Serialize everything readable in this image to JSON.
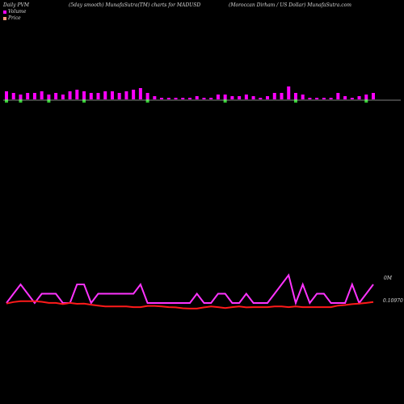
{
  "header": {
    "left": "Daily PVM",
    "middle": "(5day smooth) MunafaSutra(TM) charts for MADUSD",
    "right": "(Moroccan  Dirham  /  US Dollar) MunafaSutra.com"
  },
  "legend": {
    "volume_label": "Volume",
    "price_label": "Price",
    "volume_color": "#ff00ff",
    "price_color": "#ff9a7a"
  },
  "colors": {
    "volume_up": "#ff00ff",
    "volume_down": "#33cc33",
    "price_line": "#ff1a1a",
    "volume_line": "#ff33ff",
    "baseline": "#ffffff"
  },
  "chart_data": {
    "type": "bar",
    "title": "(5day smooth) MunafaSutra(TM) charts for MADUSD",
    "series": [
      {
        "name": "Volume",
        "values": [
          5,
          4,
          3,
          4,
          4,
          5,
          3,
          4,
          3,
          5,
          6,
          5,
          4,
          4,
          5,
          5,
          4,
          5,
          6,
          7,
          4,
          2,
          1,
          1,
          1,
          1,
          1,
          2,
          1,
          1,
          3,
          3,
          2,
          2,
          3,
          2,
          1,
          2,
          4,
          4,
          8,
          4,
          3,
          1,
          1,
          1,
          1,
          4,
          2,
          1,
          2,
          3,
          4
        ],
        "direction": [
          "down",
          "up",
          "down",
          "up",
          "up",
          "up",
          "down",
          "up",
          "up",
          "up",
          "up",
          "down",
          "up",
          "up",
          "up",
          "up",
          "up",
          "up",
          "up",
          "up",
          "down",
          "up",
          "up",
          "up",
          "up",
          "up",
          "up",
          "up",
          "up",
          "up",
          "up",
          "down",
          "up",
          "up",
          "up",
          "up",
          "up",
          "up",
          "up",
          "up",
          "up",
          "down",
          "up",
          "up",
          "up",
          "up",
          "up",
          "up",
          "up",
          "up",
          "up",
          "down",
          "up"
        ]
      },
      {
        "name": "Price",
        "values": [
          0.1097,
          0.10975,
          0.10978,
          0.10978,
          0.10978,
          0.10976,
          0.10972,
          0.10972,
          0.10968,
          0.10972,
          0.10969,
          0.1097,
          0.10966,
          0.10963,
          0.1096,
          0.1096,
          0.1096,
          0.1096,
          0.10958,
          0.10958,
          0.10962,
          0.10962,
          0.1096,
          0.10958,
          0.10957,
          0.10954,
          0.10953,
          0.10953,
          0.10957,
          0.1096,
          0.10958,
          0.10955,
          0.10958,
          0.1096,
          0.10957,
          0.10958,
          0.10958,
          0.10958,
          0.1096,
          0.1096,
          0.10958,
          0.1096,
          0.10958,
          0.10958,
          0.10958,
          0.10958,
          0.10958,
          0.10963,
          0.10965,
          0.10968,
          0.1097,
          0.10972,
          0.10975
        ],
        "axis_label": "0.10970"
      },
      {
        "name": "Volume (smoothed)",
        "values": [
          1,
          2,
          3,
          2,
          1,
          2,
          2,
          2,
          1,
          1,
          3,
          3,
          1,
          2,
          2,
          2,
          2,
          2,
          2,
          3,
          1,
          1,
          1,
          1,
          1,
          1,
          1,
          2,
          1,
          1,
          2,
          2,
          1,
          1,
          2,
          1,
          1,
          1,
          2,
          3,
          4,
          1,
          3,
          1,
          2,
          2,
          1,
          1,
          1,
          3,
          1,
          2,
          3
        ],
        "axis_label": "0M"
      }
    ],
    "xlabel": "",
    "ylabel": "",
    "grid": false
  }
}
